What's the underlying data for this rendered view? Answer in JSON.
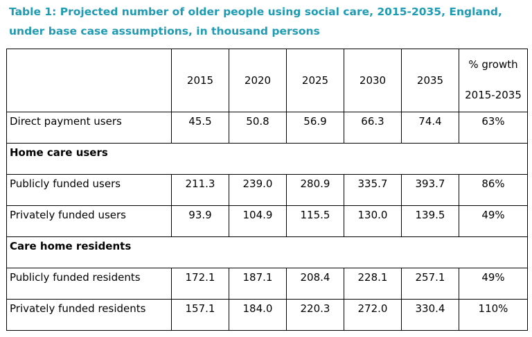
{
  "caption": "Table 1: Projected number of older people using social care, 2015-2035, England, under base case assumptions, in thousand persons",
  "table": {
    "years": [
      "2015",
      "2020",
      "2025",
      "2030",
      "2035"
    ],
    "growth_header": {
      "line1": "% growth",
      "line2": "2015-2035"
    },
    "direct_payment": {
      "label": "Direct payment users",
      "values": [
        "45.5",
        "50.8",
        "56.9",
        "66.3",
        "74.4"
      ],
      "growth": "63%"
    },
    "home_care": {
      "section_label": "Home care users",
      "rows": [
        {
          "label": "Publicly funded users",
          "values": [
            "211.3",
            "239.0",
            "280.9",
            "335.7",
            "393.7"
          ],
          "growth": "86%"
        },
        {
          "label": "Privately funded users",
          "values": [
            "93.9",
            "104.9",
            "115.5",
            "130.0",
            "139.5"
          ],
          "growth": "49%"
        }
      ]
    },
    "care_home": {
      "section_label": "Care home residents",
      "rows": [
        {
          "label": "Publicly funded residents",
          "values": [
            "172.1",
            "187.1",
            "208.4",
            "228.1",
            "257.1"
          ],
          "growth": "49%"
        },
        {
          "label": "Privately funded residents",
          "values": [
            "157.1",
            "184.0",
            "220.3",
            "272.0",
            "330.4"
          ],
          "growth": "110%"
        }
      ]
    }
  },
  "colors": {
    "caption": "#1f9bb3",
    "text": "#000000",
    "border": "#000000"
  }
}
